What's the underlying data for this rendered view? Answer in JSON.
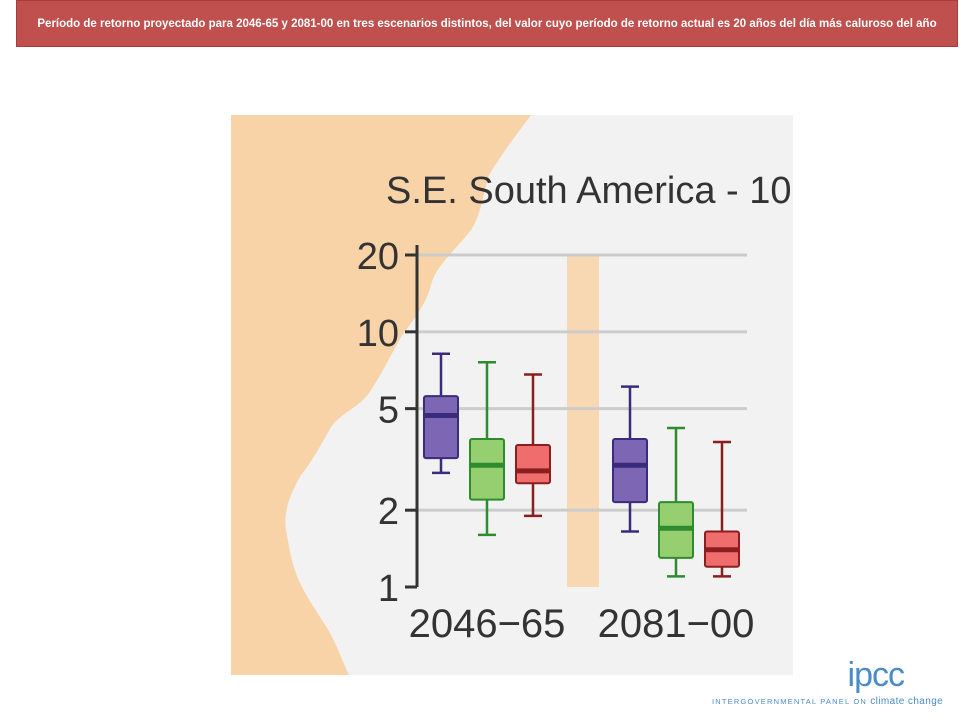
{
  "banner": {
    "title": "Período de retorno proyectado para 2046-65 y 2081-00  en tres escenarios distintos, del valor cuyo período de retorno actual es 20 años del día más caluroso  del año"
  },
  "colors": {
    "banner": "#c0504d",
    "land": "#f8d3a8",
    "sea": "#f2f2f2",
    "b1": "#7d67b5",
    "b1_line": "#3b2b7d",
    "b2": "#96cf6f",
    "b2_line": "#2f8b2f",
    "b3": "#f06d6d",
    "b3_line": "#8b1f1f",
    "gridline": "#cccccc",
    "logo": "#4a8cc9"
  },
  "chart_data": {
    "type": "box",
    "title": "S.E. South America - 10",
    "ylabel": "",
    "yscale": "log",
    "ylim": [
      1,
      20
    ],
    "yticks": [
      1,
      2,
      5,
      10,
      20
    ],
    "ytick_labels": [
      "1",
      "2",
      "5",
      "10",
      "20"
    ],
    "gridlines": [
      2,
      5,
      10,
      20
    ],
    "categories": [
      "2046−65",
      "2081−00"
    ],
    "series": [
      {
        "color_key": "b1",
        "boxes": [
          {
            "whisker_low": 2.8,
            "q1": 3.2,
            "median": 4.7,
            "q3": 5.6,
            "whisker_high": 8.2
          },
          {
            "whisker_low": 1.65,
            "q1": 2.15,
            "median": 3.0,
            "q3": 3.8,
            "whisker_high": 6.1
          }
        ]
      },
      {
        "color_key": "b2",
        "boxes": [
          {
            "whisker_low": 1.6,
            "q1": 2.2,
            "median": 3.0,
            "q3": 3.8,
            "whisker_high": 7.6
          },
          {
            "whisker_low": 1.1,
            "q1": 1.3,
            "median": 1.7,
            "q3": 2.15,
            "whisker_high": 4.2
          }
        ]
      },
      {
        "color_key": "b3",
        "boxes": [
          {
            "whisker_low": 1.9,
            "q1": 2.55,
            "median": 2.85,
            "q3": 3.6,
            "whisker_high": 6.8
          },
          {
            "whisker_low": 1.1,
            "q1": 1.2,
            "median": 1.4,
            "q3": 1.65,
            "whisker_high": 3.7
          }
        ]
      }
    ]
  },
  "logo": {
    "name": "ipcc",
    "tagline_prefix": "INTERGOVERNMENTAL PANEL ON",
    "tagline_suffix": "climate change"
  }
}
